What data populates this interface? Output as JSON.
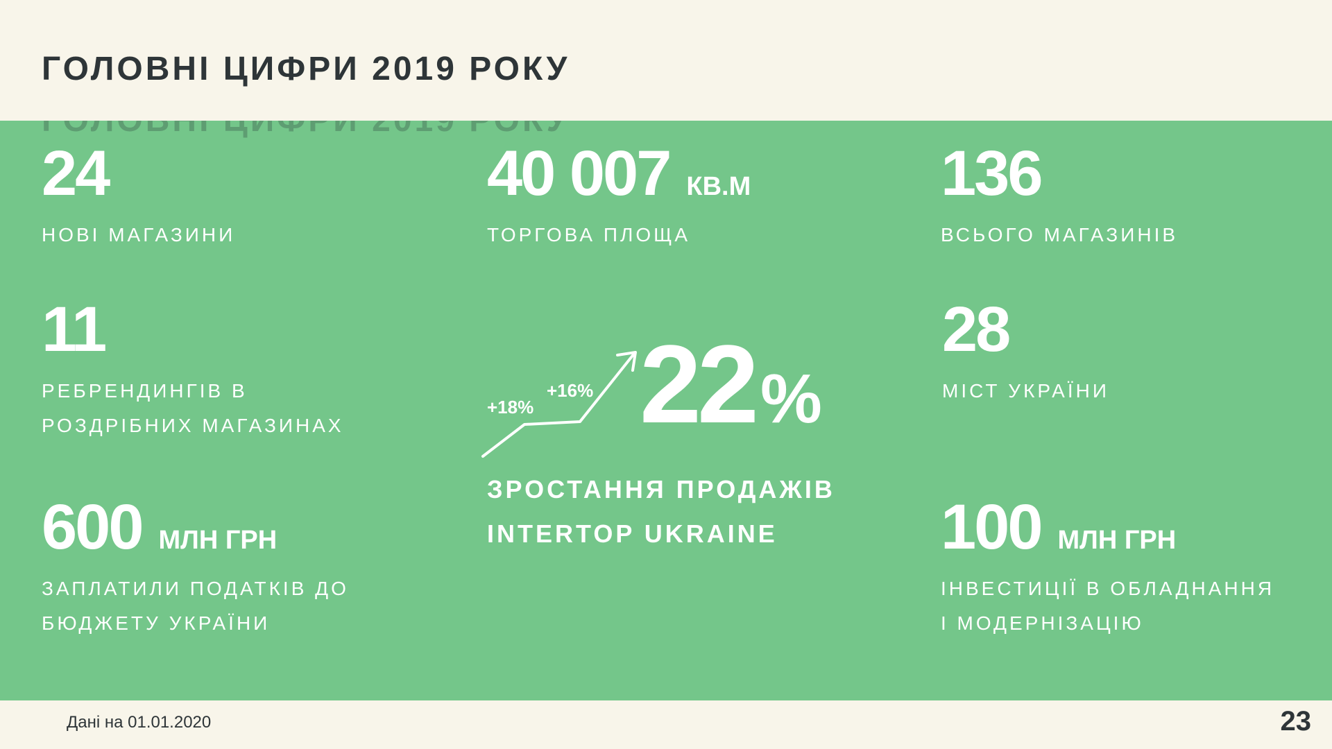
{
  "title": "ГОЛОВНІ ЦИФРИ 2019 РОКУ",
  "stats": {
    "new_stores": {
      "value": "24",
      "label": "НОВІ МАГАЗИНИ"
    },
    "retail_area": {
      "value": "40 007",
      "unit": "КВ.М",
      "label": "ТОРГОВА ПЛОЩА"
    },
    "total_stores": {
      "value": "136",
      "label": "ВСЬОГО МАГАЗИНІВ"
    },
    "rebrandings": {
      "value": "11",
      "label_line1": "РЕБРЕНДИНГІВ В",
      "label_line2": "РОЗДРІБНИХ МАГАЗИНАХ"
    },
    "cities": {
      "value": "28",
      "label": "МІСТ УКРАЇНИ"
    },
    "taxes": {
      "value": "600",
      "unit": "МЛН ГРН",
      "label_line1": "ЗАПЛАТИЛИ ПОДАТКІВ ДО",
      "label_line2": "БЮДЖЕТУ УКРАЇНИ"
    },
    "investments": {
      "value": "100",
      "unit": "МЛН ГРН",
      "label_line1": "ІНВЕСТИЦІЇ В ОБЛАДНАННЯ",
      "label_line2": "І МОДЕРНІЗАЦІЮ"
    }
  },
  "growth": {
    "value": "22",
    "percent_sign": "%",
    "step1": "+18%",
    "step2": "+16%",
    "label_line1": "ЗРОСТАННЯ ПРОДАЖІВ",
    "label_line2": "INTERTOP UKRAINE"
  },
  "footer": {
    "note": "Дані на 01.01.2020",
    "page_number": "23"
  },
  "colors": {
    "background": "#f8f5ea",
    "green": "#74c68a",
    "text_dark": "#2e3538",
    "text_light": "#ffffff"
  }
}
